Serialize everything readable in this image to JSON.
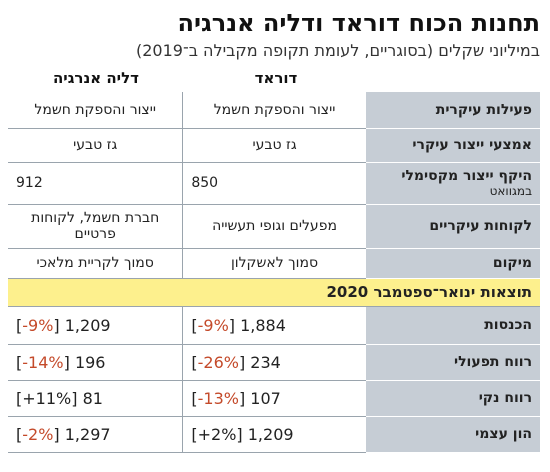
{
  "header": {
    "title": "תחנות הכוח דוראד ודליה אנרגיה",
    "subtitle": "במיליוני שקלים (בסוגריים, לעומת תקופה מקבילה ב־2019)"
  },
  "columns": {
    "company1": "דוראד",
    "company2": "דליה אנרגיה"
  },
  "rows": [
    {
      "label": "פעילות עיקרית",
      "c1": "ייצור והספקת חשמל",
      "c2": "ייצור והספקת חשמל"
    },
    {
      "label": "אמצעי ייצור עיקרי",
      "c1": "גז טבעי",
      "c2": "גז טבעי"
    },
    {
      "label": "היקף ייצור מקסימלי",
      "label_sub": "במגוואט",
      "c1": "850",
      "c2": "912"
    },
    {
      "label": "לקוחות עיקריים",
      "c1": "מפעלים וגופי תעשייה",
      "c2": "חברת חשמל, לקוחות פרטיים"
    },
    {
      "label": "מיקום",
      "c1": "סמוך לאשקלון",
      "c2": "סמוך לקריית מלאכי"
    }
  ],
  "section_title": "תוצאות ינואר־ספטמבר 2020",
  "financials": [
    {
      "label": "הכנסות",
      "c1_value": "1,884",
      "c1_change": "-9%",
      "c1_dir": "neg",
      "c2_value": "1,209",
      "c2_change": "-9%",
      "c2_dir": "neg"
    },
    {
      "label": "רווח תפעולי",
      "c1_value": "234",
      "c1_change": "-26%",
      "c1_dir": "neg",
      "c2_value": "196",
      "c2_change": "-14%",
      "c2_dir": "neg"
    },
    {
      "label": "רווח נקי",
      "c1_value": "107",
      "c1_change": "-13%",
      "c1_dir": "neg",
      "c2_value": "81",
      "c2_change": "+11%",
      "c2_dir": "pos"
    },
    {
      "label": "הון עצמי",
      "c1_value": "1,209",
      "c1_change": "+2%",
      "c1_dir": "pos",
      "c2_value": "1,297",
      "c2_change": "-2%",
      "c2_dir": "neg"
    }
  ],
  "colors": {
    "label_bg": "#c6cdd5",
    "section_bg": "#fdf08d",
    "negative": "#c44a2a",
    "rule": "#9aa4ad"
  }
}
